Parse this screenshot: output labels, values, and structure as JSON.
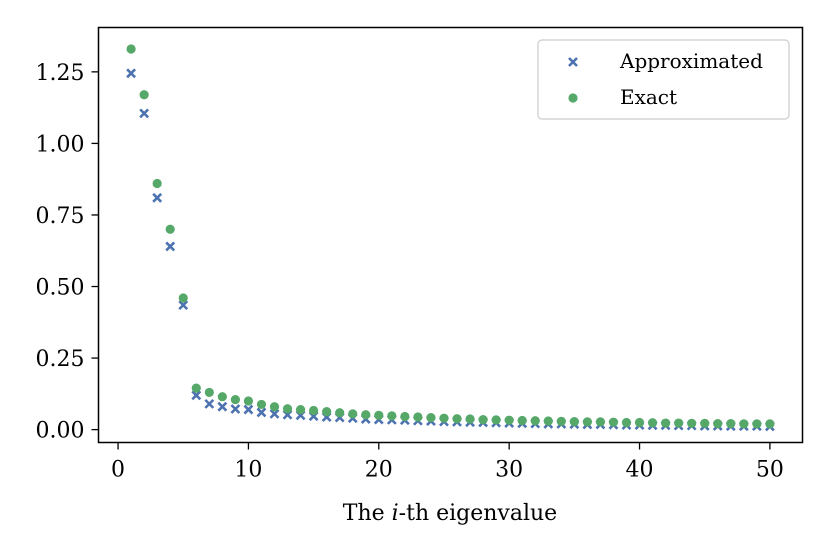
{
  "chart_data": {
    "type": "scatter",
    "title": "",
    "xlabel_prefix": "The ",
    "xlabel_italic": "i",
    "xlabel_suffix": "-th eigenvalue",
    "ylabel": "",
    "xlim": [
      -1.5,
      52.5
    ],
    "ylim": [
      -0.045,
      1.405
    ],
    "xticks": [
      0,
      10,
      20,
      30,
      40,
      50
    ],
    "xtick_labels": [
      "0",
      "10",
      "20",
      "30",
      "40",
      "50"
    ],
    "yticks": [
      0.0,
      0.25,
      0.5,
      0.75,
      1.0,
      1.25
    ],
    "ytick_labels": [
      "0.00",
      "0.25",
      "0.50",
      "0.75",
      "1.00",
      "1.25"
    ],
    "legend_position": "top-right",
    "x": [
      1,
      2,
      3,
      4,
      5,
      6,
      7,
      8,
      9,
      10,
      11,
      12,
      13,
      14,
      15,
      16,
      17,
      18,
      19,
      20,
      21,
      22,
      23,
      24,
      25,
      26,
      27,
      28,
      29,
      30,
      31,
      32,
      33,
      34,
      35,
      36,
      37,
      38,
      39,
      40,
      41,
      42,
      43,
      44,
      45,
      46,
      47,
      48,
      49,
      50
    ],
    "series": [
      {
        "name": "Approximated",
        "marker": "x",
        "color": "#4c72b0",
        "values": [
          1.245,
          1.105,
          0.81,
          0.64,
          0.435,
          0.12,
          0.09,
          0.08,
          0.072,
          0.07,
          0.06,
          0.055,
          0.052,
          0.05,
          0.047,
          0.044,
          0.042,
          0.04,
          0.037,
          0.035,
          0.034,
          0.033,
          0.031,
          0.03,
          0.028,
          0.027,
          0.026,
          0.025,
          0.024,
          0.023,
          0.022,
          0.021,
          0.02,
          0.02,
          0.019,
          0.018,
          0.018,
          0.017,
          0.016,
          0.016,
          0.015,
          0.015,
          0.014,
          0.014,
          0.013,
          0.013,
          0.012,
          0.012,
          0.012,
          0.011
        ]
      },
      {
        "name": "Exact",
        "marker": "o",
        "color": "#55a868",
        "values": [
          1.33,
          1.17,
          0.86,
          0.7,
          0.46,
          0.145,
          0.13,
          0.115,
          0.105,
          0.1,
          0.088,
          0.08,
          0.073,
          0.07,
          0.067,
          0.063,
          0.059,
          0.055,
          0.052,
          0.05,
          0.048,
          0.046,
          0.044,
          0.042,
          0.04,
          0.038,
          0.037,
          0.035,
          0.034,
          0.033,
          0.032,
          0.031,
          0.03,
          0.029,
          0.028,
          0.027,
          0.027,
          0.026,
          0.025,
          0.025,
          0.024,
          0.023,
          0.023,
          0.022,
          0.022,
          0.021,
          0.021,
          0.02,
          0.02,
          0.02
        ]
      }
    ]
  }
}
